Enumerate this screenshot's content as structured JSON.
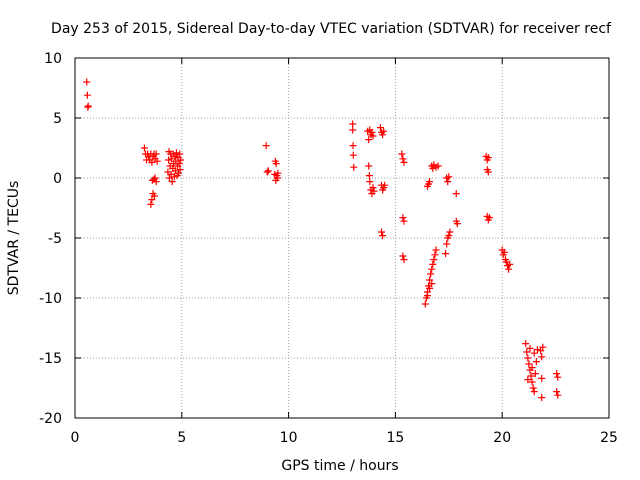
{
  "chart_data": {
    "type": "scatter",
    "title": "Day 253 of 2015, Sidereal Day-to-day VTEC variation (SDTVAR) for receiver recf",
    "xlabel": "GPS time / hours",
    "ylabel": "SDTVAR / TECUs",
    "xlim": [
      0,
      25
    ],
    "ylim": [
      -20,
      10
    ],
    "xticks": [
      0,
      5,
      10,
      15,
      20,
      25
    ],
    "yticks": [
      -20,
      -15,
      -10,
      -5,
      0,
      5,
      10
    ],
    "grid": true,
    "marker": "plus",
    "color": "#ff0000",
    "series": [
      {
        "name": "SDTVAR",
        "points": [
          [
            0.55,
            8.0
          ],
          [
            0.58,
            6.9
          ],
          [
            0.6,
            5.9
          ],
          [
            0.62,
            6.0
          ],
          [
            3.25,
            2.5
          ],
          [
            3.3,
            2.0
          ],
          [
            3.35,
            1.5
          ],
          [
            3.4,
            2.0
          ],
          [
            3.45,
            1.8
          ],
          [
            3.5,
            1.5
          ],
          [
            3.55,
            2.0
          ],
          [
            3.6,
            1.3
          ],
          [
            3.65,
            1.8
          ],
          [
            3.7,
            2.0
          ],
          [
            3.75,
            1.6
          ],
          [
            3.8,
            2.0
          ],
          [
            3.85,
            1.4
          ],
          [
            3.55,
            -2.2
          ],
          [
            3.6,
            -1.8
          ],
          [
            3.62,
            -0.2
          ],
          [
            3.65,
            -1.3
          ],
          [
            3.7,
            -0.1
          ],
          [
            3.72,
            -1.5
          ],
          [
            3.75,
            0.0
          ],
          [
            3.8,
            -0.3
          ],
          [
            4.35,
            0.5
          ],
          [
            4.38,
            1.5
          ],
          [
            4.4,
            2.2
          ],
          [
            4.42,
            0.0
          ],
          [
            4.45,
            1.0
          ],
          [
            4.48,
            2.0
          ],
          [
            4.5,
            0.3
          ],
          [
            4.52,
            1.6
          ],
          [
            4.55,
            -0.3
          ],
          [
            4.58,
            0.8
          ],
          [
            4.6,
            2.0
          ],
          [
            4.62,
            1.2
          ],
          [
            4.65,
            0.1
          ],
          [
            4.68,
            1.8
          ],
          [
            4.7,
            0.6
          ],
          [
            4.72,
            1.4
          ],
          [
            4.75,
            2.1
          ],
          [
            4.78,
            0.2
          ],
          [
            4.8,
            1.0
          ],
          [
            4.82,
            1.7
          ],
          [
            4.85,
            0.4
          ],
          [
            4.88,
            1.2
          ],
          [
            4.9,
            2.0
          ],
          [
            4.92,
            0.7
          ],
          [
            4.95,
            1.5
          ],
          [
            8.95,
            2.7
          ],
          [
            9.0,
            0.5
          ],
          [
            9.05,
            0.6
          ],
          [
            9.35,
            0.3
          ],
          [
            9.38,
            1.4
          ],
          [
            9.4,
            -0.2
          ],
          [
            9.42,
            1.2
          ],
          [
            9.45,
            0.2
          ],
          [
            9.48,
            0.0
          ],
          [
            9.5,
            0.4
          ],
          [
            13.0,
            4.5
          ],
          [
            13.0,
            4.0
          ],
          [
            13.02,
            2.7
          ],
          [
            13.03,
            1.9
          ],
          [
            13.05,
            0.9
          ],
          [
            13.7,
            3.9
          ],
          [
            13.75,
            3.2
          ],
          [
            13.8,
            4.0
          ],
          [
            13.85,
            3.6
          ],
          [
            13.9,
            3.8
          ],
          [
            13.95,
            3.5
          ],
          [
            13.75,
            1.0
          ],
          [
            13.78,
            0.2
          ],
          [
            13.8,
            -0.3
          ],
          [
            13.85,
            -1.0
          ],
          [
            13.9,
            -1.3
          ],
          [
            13.95,
            -0.8
          ],
          [
            14.0,
            -1.1
          ],
          [
            14.3,
            4.2
          ],
          [
            14.35,
            3.8
          ],
          [
            14.4,
            3.6
          ],
          [
            14.45,
            3.9
          ],
          [
            14.35,
            -0.6
          ],
          [
            14.4,
            -1.0
          ],
          [
            14.45,
            -0.8
          ],
          [
            14.5,
            -0.6
          ],
          [
            14.35,
            -4.5
          ],
          [
            14.4,
            -4.8
          ],
          [
            15.3,
            2.0
          ],
          [
            15.35,
            1.6
          ],
          [
            15.4,
            1.3
          ],
          [
            15.35,
            -3.3
          ],
          [
            15.4,
            -3.6
          ],
          [
            15.35,
            -6.5
          ],
          [
            15.4,
            -6.8
          ],
          [
            16.4,
            -10.5
          ],
          [
            16.45,
            -10.0
          ],
          [
            16.5,
            -9.5
          ],
          [
            16.55,
            -9.0
          ],
          [
            16.6,
            -8.5
          ],
          [
            16.65,
            -8.0
          ],
          [
            16.7,
            -7.6
          ],
          [
            16.75,
            -7.2
          ],
          [
            16.8,
            -6.8
          ],
          [
            16.85,
            -6.4
          ],
          [
            16.9,
            -6.0
          ],
          [
            16.5,
            -9.8
          ],
          [
            16.6,
            -9.2
          ],
          [
            16.7,
            -8.8
          ],
          [
            16.5,
            -0.7
          ],
          [
            16.55,
            -0.5
          ],
          [
            16.6,
            -0.3
          ],
          [
            16.7,
            1.0
          ],
          [
            16.75,
            0.8
          ],
          [
            16.8,
            1.1
          ],
          [
            16.9,
            0.9
          ],
          [
            17.0,
            1.0
          ],
          [
            17.35,
            -6.3
          ],
          [
            17.4,
            -5.5
          ],
          [
            17.45,
            -5.0
          ],
          [
            17.5,
            -4.8
          ],
          [
            17.55,
            -4.5
          ],
          [
            17.4,
            0.0
          ],
          [
            17.45,
            -0.3
          ],
          [
            17.5,
            0.1
          ],
          [
            17.85,
            -1.3
          ],
          [
            17.85,
            -3.6
          ],
          [
            17.9,
            -3.8
          ],
          [
            19.25,
            1.8
          ],
          [
            19.3,
            1.5
          ],
          [
            19.35,
            1.7
          ],
          [
            19.3,
            0.7
          ],
          [
            19.35,
            0.5
          ],
          [
            19.3,
            -3.2
          ],
          [
            19.35,
            -3.5
          ],
          [
            19.4,
            -3.3
          ],
          [
            20.0,
            -6.0
          ],
          [
            20.05,
            -6.4
          ],
          [
            20.1,
            -6.2
          ],
          [
            20.15,
            -6.8
          ],
          [
            20.2,
            -7.0
          ],
          [
            20.25,
            -7.3
          ],
          [
            20.3,
            -7.6
          ],
          [
            20.35,
            -7.2
          ],
          [
            21.1,
            -13.8
          ],
          [
            21.15,
            -14.5
          ],
          [
            21.2,
            -15.0
          ],
          [
            21.25,
            -15.5
          ],
          [
            21.3,
            -16.0
          ],
          [
            21.35,
            -16.5
          ],
          [
            21.4,
            -17.0
          ],
          [
            21.45,
            -17.5
          ],
          [
            21.5,
            -17.8
          ],
          [
            21.55,
            -16.3
          ],
          [
            21.6,
            -15.3
          ],
          [
            21.65,
            -14.3
          ],
          [
            21.2,
            -16.8
          ],
          [
            21.3,
            -14.2
          ],
          [
            21.4,
            -15.8
          ],
          [
            21.5,
            -14.6
          ],
          [
            21.8,
            -14.4
          ],
          [
            21.85,
            -14.9
          ],
          [
            21.85,
            -16.7
          ],
          [
            21.85,
            -18.3
          ],
          [
            21.9,
            -14.1
          ],
          [
            22.55,
            -16.3
          ],
          [
            22.6,
            -16.6
          ],
          [
            22.55,
            -17.8
          ],
          [
            22.6,
            -18.1
          ]
        ]
      }
    ]
  }
}
